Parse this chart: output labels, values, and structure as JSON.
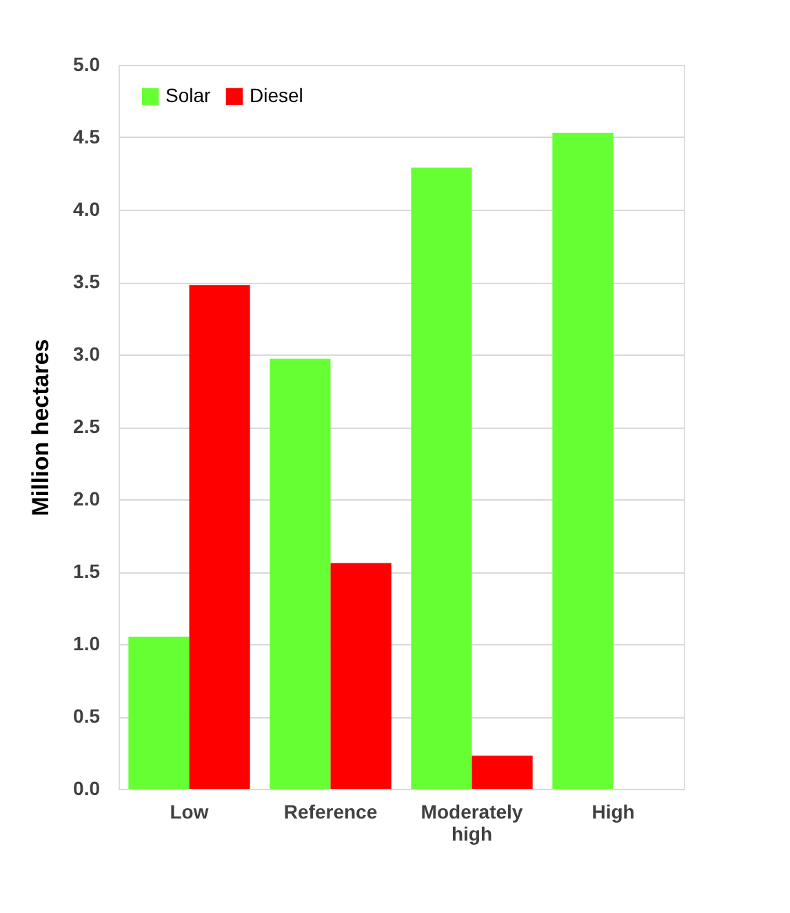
{
  "chart_data": {
    "type": "bar",
    "ylabel": "Million hectares",
    "categories": [
      "Low",
      "Reference",
      "Moderately high",
      "High"
    ],
    "series": [
      {
        "name": "Solar",
        "color": "#66ff33",
        "values": [
          1.05,
          2.97,
          4.29,
          4.53
        ]
      },
      {
        "name": "Diesel",
        "color": "#ff0000",
        "values": [
          3.48,
          1.56,
          0.23,
          null
        ]
      }
    ],
    "ylim": [
      0,
      5
    ],
    "yticks": [
      {
        "value": 0,
        "label": "0.0"
      },
      {
        "value": 0.5,
        "label": "0.5"
      },
      {
        "value": 1,
        "label": "1.0"
      },
      {
        "value": 1.5,
        "label": "1.5"
      },
      {
        "value": 2,
        "label": "2.0"
      },
      {
        "value": 2.5,
        "label": "2.5"
      },
      {
        "value": 3,
        "label": "3.0"
      },
      {
        "value": 3.5,
        "label": "3.5"
      },
      {
        "value": 4,
        "label": "4.0"
      },
      {
        "value": 4.5,
        "label": "4.5"
      },
      {
        "value": 5,
        "label": "5.0"
      }
    ],
    "grid": "y",
    "legend": "top left"
  }
}
